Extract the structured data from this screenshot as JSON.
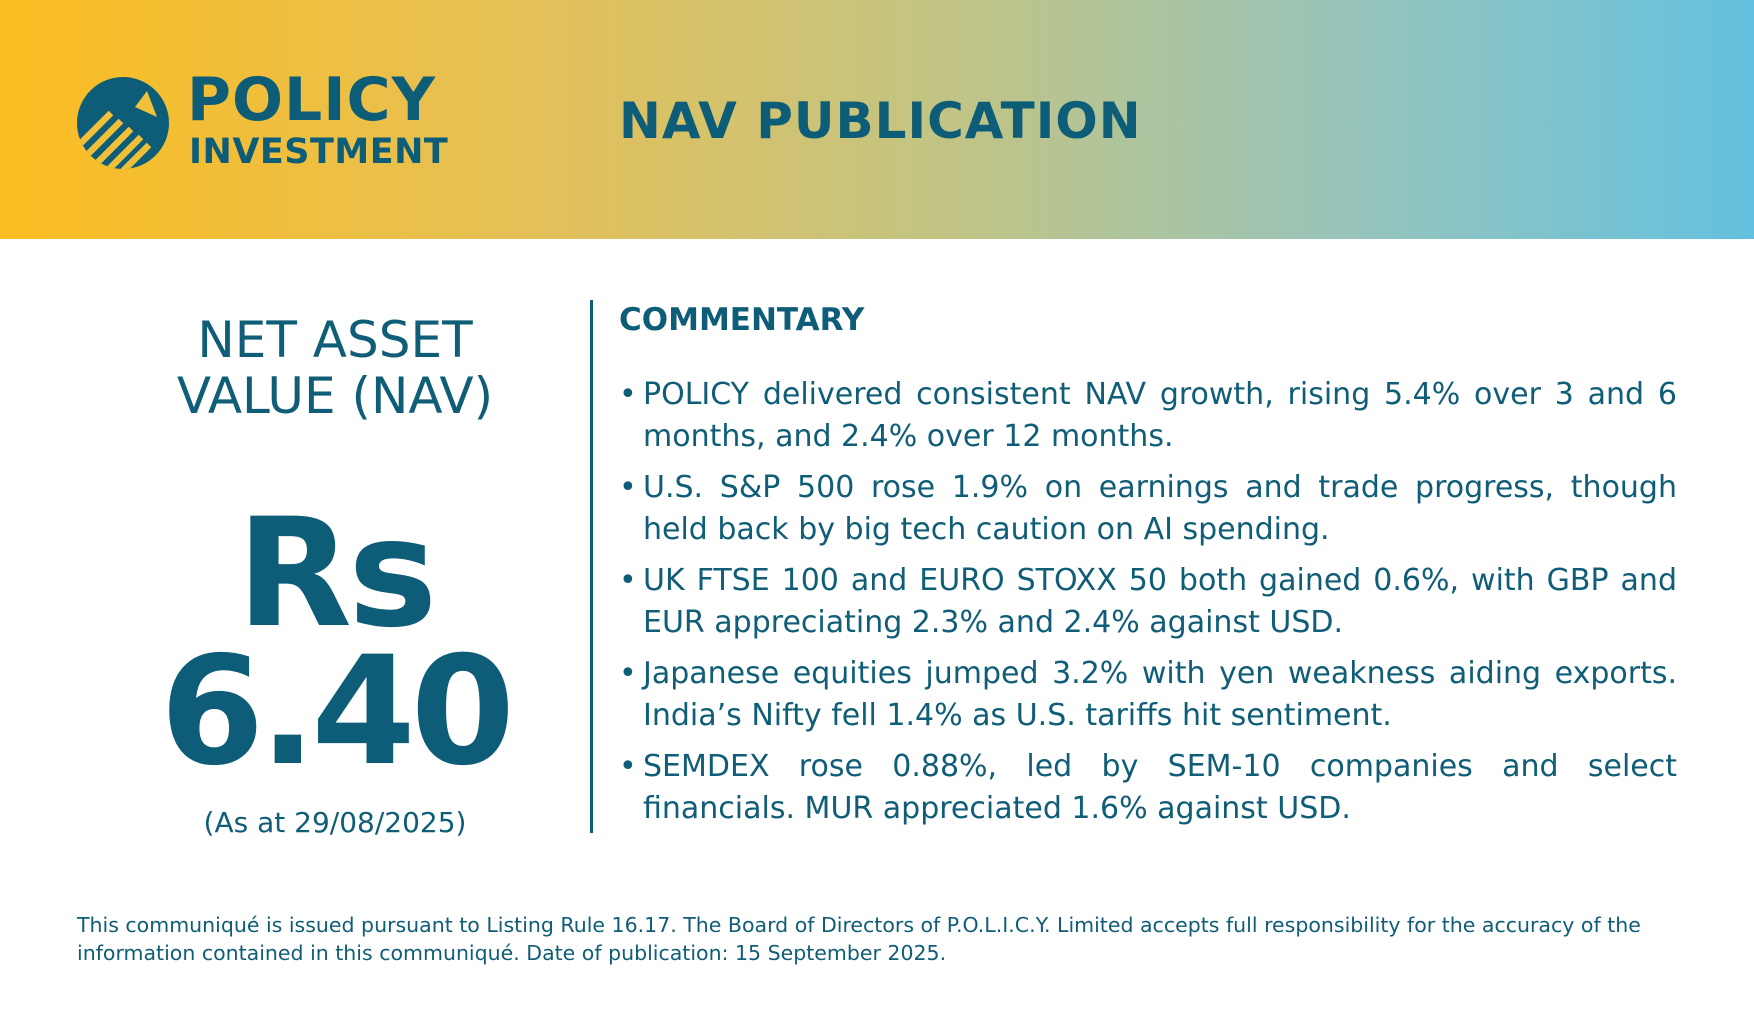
{
  "header": {
    "logo": {
      "word1": "POLICY",
      "word2": "INVESTMENT",
      "icon": "logo-arrow-icon"
    },
    "title": "NAV PUBLICATION"
  },
  "nav": {
    "label_line1": "NET ASSET",
    "label_line2": "VALUE (NAV)",
    "currency": "Rs",
    "value": "6.40",
    "as_at": "(As at 29/08/2025)"
  },
  "commentary": {
    "title": "COMMENTARY",
    "bullet": "•",
    "items": [
      "POLICY delivered consistent NAV growth, rising 5.4% over 3 and 6 months, and 2.4% over 12 months.",
      "U.S. S&P 500 rose 1.9% on earnings and trade progress, though held back by big tech caution on AI spending.",
      "UK FTSE 100 and EURO STOXX 50 both gained 0.6%, with GBP and EUR appreciating 2.3% and 2.4% against USD.",
      "Japanese equities jumped 3.2% with yen weakness aiding exports. India’s Nifty fell 1.4% as U.S. tariffs hit sentiment.",
      "SEMDEX rose 0.88%, led by SEM-10 companies and select financials. MUR appreciated 1.6% against USD."
    ]
  },
  "footer": {
    "text": "This communiqué is issued pursuant to Listing Rule 16.17. The Board of Directors of P.O.L.I.C.Y. Limited accepts full responsibility for the accuracy of the information contained in this communiqué. Date of publication: 15 September 2025."
  },
  "colors": {
    "brand_teal": "#0e5d78",
    "gradient_start": "#fbbd21",
    "gradient_end": "#63c1df",
    "background": "#ffffff"
  }
}
